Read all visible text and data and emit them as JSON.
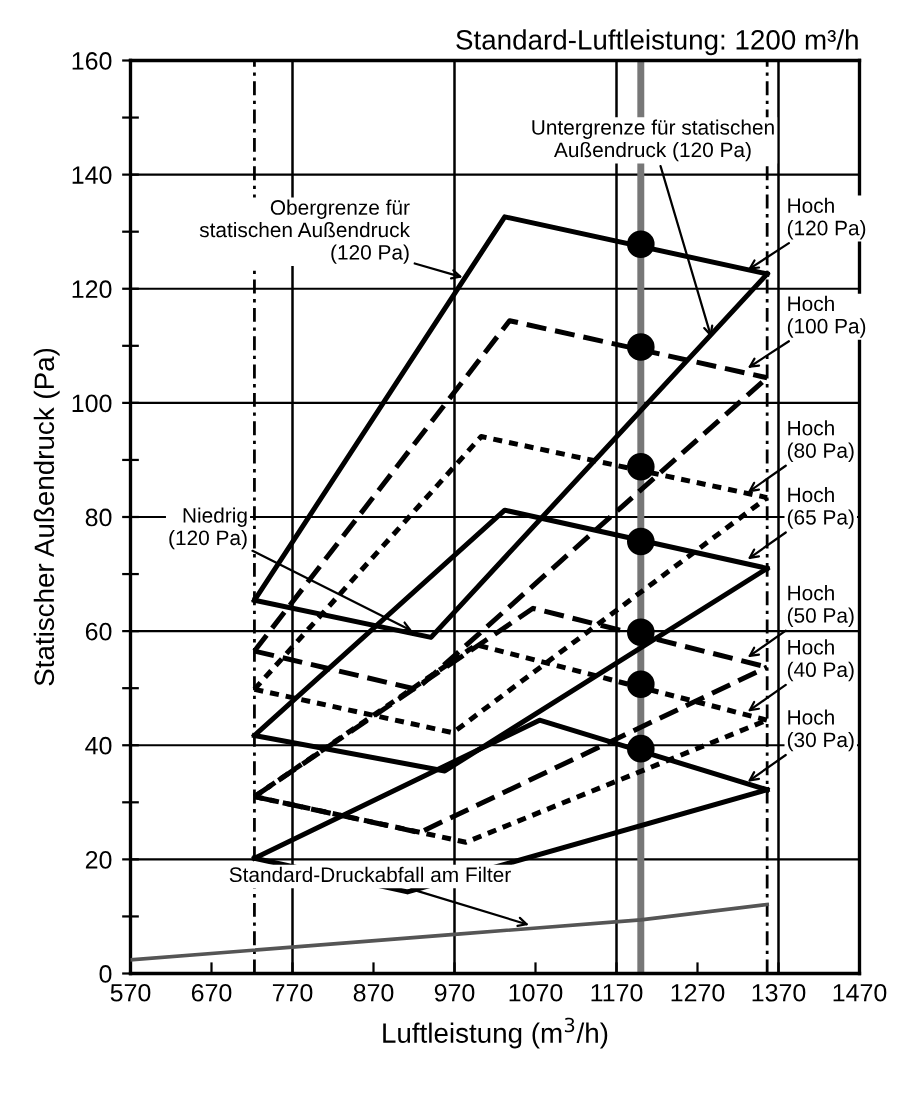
{
  "chart_data": {
    "type": "line",
    "title": "Standard-Luftleistung: 1200 m³/h",
    "xlabel": "Luftleistung (m$^{3}$/h)",
    "ylabel": "Statischer Außendruck (Pa)",
    "xlim": [
      570,
      1470
    ],
    "ylim": [
      0,
      160
    ],
    "xticks": [
      570,
      670,
      770,
      870,
      970,
      1070,
      1170,
      1270,
      1370,
      1470
    ],
    "yticks": [
      0,
      {
        "value": 10,
        "label": null
      },
      20,
      {
        "value": 30,
        "label": null
      },
      40,
      {
        "value": 50,
        "label": null
      },
      60,
      {
        "value": 70,
        "label": null
      },
      80,
      {
        "value": 90,
        "label": null
      },
      100,
      {
        "value": 110,
        "label": null
      },
      120,
      {
        "value": 130,
        "label": null
      },
      140,
      {
        "value": 150,
        "label": null
      },
      160
    ],
    "grid": "y",
    "series": [
      {
        "color": "#000000",
        "line_style": "solid",
        "x": [
          723,
          1032,
          1356
        ],
        "values": [
          65.4,
          132.6,
          122.6
        ]
      },
      {
        "color": "#000000",
        "line_style": "solid",
        "x": [
          723,
          941,
          1356
        ],
        "values": [
          65.4,
          58.9,
          122.6
        ]
      },
      {
        "color": "#000000",
        "line_style": "dashed",
        "x": [
          723,
          1038,
          1356
        ],
        "values": [
          56.5,
          114.4,
          104.4
        ]
      },
      {
        "color": "#000000",
        "line_style": "dashed",
        "x": [
          723,
          923,
          1356
        ],
        "values": [
          56.5,
          49.8,
          104.4
        ]
      },
      {
        "color": "#000000",
        "line_style": "dotted",
        "x": [
          723,
          1003,
          1356
        ],
        "values": [
          49.8,
          94.1,
          83.4
        ]
      },
      {
        "color": "#000000",
        "line_style": "dotted",
        "x": [
          723,
          968,
          1356
        ],
        "values": [
          49.8,
          42.2,
          83.4
        ]
      },
      {
        "color": "#000000",
        "line_style": "solid",
        "x": [
          723,
          1032,
          1356
        ],
        "values": [
          41.7,
          81.2,
          71.0
        ]
      },
      {
        "color": "#000000",
        "line_style": "solid",
        "x": [
          723,
          958,
          1356
        ],
        "values": [
          41.7,
          35.5,
          71.0
        ]
      },
      {
        "color": "#000000",
        "line_style": "dashed",
        "x": [
          723,
          1067,
          1356
        ],
        "values": [
          31.0,
          64.0,
          53.7
        ]
      },
      {
        "color": "#000000",
        "line_style": "dashed",
        "x": [
          723,
          927,
          1356
        ],
        "values": [
          31.0,
          24.7,
          53.7
        ]
      },
      {
        "color": "#000000",
        "line_style": "dotted",
        "x": [
          723,
          997,
          1356
        ],
        "values": [
          31.0,
          57.6,
          44.4
        ]
      },
      {
        "color": "#000000",
        "line_style": "dotted",
        "x": [
          723,
          984,
          1356
        ],
        "values": [
          31.0,
          23.0,
          44.4
        ]
      },
      {
        "color": "#000000",
        "line_style": "solid",
        "x": [
          723,
          1075,
          1356
        ],
        "values": [
          20.2,
          44.4,
          32.2
        ]
      },
      {
        "color": "#000000",
        "line_style": "solid",
        "x": [
          723,
          912,
          1356
        ],
        "values": [
          20.2,
          14.3,
          32.2
        ]
      },
      {
        "color": "#555555",
        "line_style": "solid",
        "x": [
          570,
          974,
          1200,
          1356
        ],
        "values": [
          2.4,
          6.9,
          9.4,
          12.1
        ]
      },
      {
        "type": "scatter",
        "color": "#000000",
        "marker": "circle",
        "x": [
          1200,
          1200,
          1200,
          1200,
          1200,
          1200,
          1200
        ],
        "values": [
          127.8,
          109.8,
          88.8,
          75.7,
          59.8,
          50.7,
          39.4
        ]
      }
    ],
    "ref_lines": [
      {
        "axis": "x",
        "value": 770,
        "color": "#000000",
        "line_style": "solid"
      },
      {
        "axis": "x",
        "value": 970,
        "color": "#000000",
        "line_style": "solid"
      },
      {
        "axis": "x",
        "value": 1170,
        "color": "#000000",
        "line_style": "solid"
      },
      {
        "axis": "x",
        "value": 1370,
        "color": "#000000",
        "line_style": "solid"
      },
      {
        "axis": "x",
        "value": 723,
        "color": "#000000",
        "line_style": "dashdot"
      },
      {
        "axis": "x",
        "value": 1356,
        "color": "#000000",
        "line_style": "dashdot"
      },
      {
        "axis": "x",
        "value": 1200,
        "color": "#777777",
        "line_style": "solid"
      }
    ],
    "annotations": [
      {
        "text": "Obergrenze für\nstatischen Außendruck\n(120 Pa)",
        "x": 980,
        "y": 122
      },
      {
        "text": "Untergrenze für statischen\nAußendruck (120 Pa)",
        "x": 1287,
        "y": 111.5
      },
      {
        "text": "Niedrig\n(120 Pa)",
        "x": 918,
        "y": 60
      },
      {
        "text": "Standard-Druckabfall am Filter",
        "x": 1062,
        "y": 8.5
      },
      {
        "text": "Hoch\n(120 Pa)",
        "x": 1332,
        "y": 123.3
      },
      {
        "text": "Hoch\n(100 Pa)",
        "x": 1332,
        "y": 106.1
      },
      {
        "text": "Hoch\n(80 Pa)",
        "x": 1332,
        "y": 84.3
      },
      {
        "text": "Hoch\n(65 Pa)",
        "x": 1332,
        "y": 72.6
      },
      {
        "text": "Hoch\n(50 Pa)",
        "x": 1332,
        "y": 55.4
      },
      {
        "text": "Hoch\n(40 Pa)",
        "x": 1332,
        "y": 45.9
      },
      {
        "text": "Hoch\n(30 Pa)",
        "x": 1332,
        "y": 33.6
      }
    ]
  }
}
